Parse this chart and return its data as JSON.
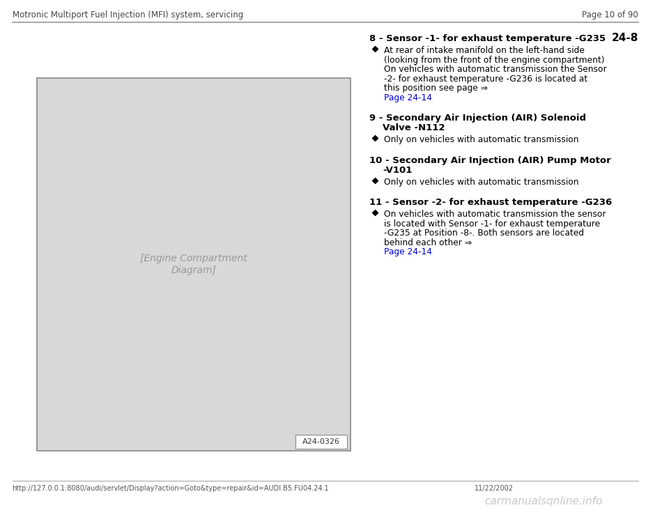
{
  "bg_color": "#ffffff",
  "header_left": "Motronic Multiport Fuel Injection (MFI) system, servicing",
  "header_right": "Page 10 of 90",
  "page_num": "24-8",
  "footer_left": "http://127.0.0.1:8080/audi/servlet/Display?action=Goto&type=repair&id=AUDI.B5.FU04.24.1",
  "footer_right": "11/22/2002",
  "footer_watermark": "carmanualsqnline.info",
  "items": [
    {
      "number": "8",
      "title": "Sensor -1- for exhaust temperature -G235",
      "bullets": [
        {
          "text": "At rear of intake manifold on the left-hand side (looking from the front of the engine compartment) On vehicles with automatic transmission the Sensor -2- for exhaust temperature -G236 is located at this position see page ⇒ ",
          "link": "Page 24-14",
          "text_after": " ."
        }
      ]
    },
    {
      "number": "9",
      "title": "Secondary Air Injection (AIR) Solenoid\nValve -N112",
      "bullets": [
        {
          "text": "Only on vehicles with automatic transmission",
          "link": null,
          "text_after": ""
        }
      ]
    },
    {
      "number": "10",
      "title": "Secondary Air Injection (AIR) Pump Motor\n-V101",
      "bullets": [
        {
          "text": "Only on vehicles with automatic transmission",
          "link": null,
          "text_after": ""
        }
      ]
    },
    {
      "number": "11",
      "title": "Sensor -2- for exhaust temperature -G236",
      "bullets": [
        {
          "text": "On vehicles with automatic transmission the sensor is located with Sensor -1- for exhaust temperature -G235 at Position -8-. Both sensors are located behind each other ⇒ ",
          "link": "Page 24-14",
          "text_after": " ."
        }
      ]
    }
  ],
  "image_label": "A24-0326"
}
